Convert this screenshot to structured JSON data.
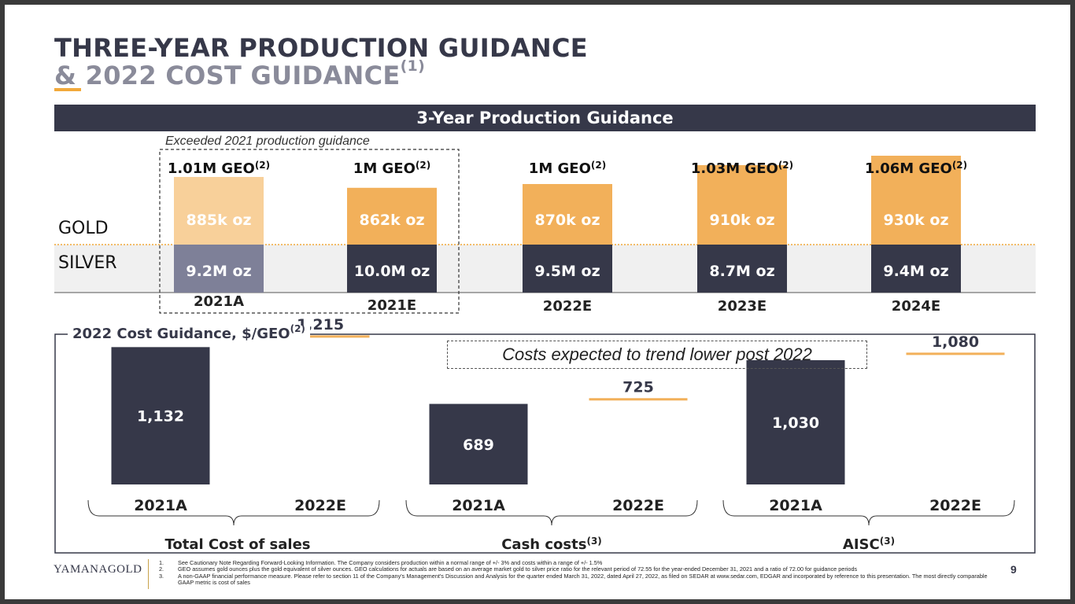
{
  "title": {
    "line1": "THREE-YEAR PRODUCTION GUIDANCE",
    "line2": "& 2022 COST GUIDANCE",
    "line2_sup": "(1)"
  },
  "banner": "3-Year Production Guidance",
  "exceeded_note": "Exceeded 2021 production guidance",
  "row_labels": {
    "gold": "GOLD",
    "silver": "SILVER"
  },
  "colors": {
    "navy": "#363849",
    "gold": "#f2b05a",
    "gold_light": "#f8d09a",
    "silver_light": "#7e8098",
    "silver_band": "#f0f0f0",
    "divider": "#f2a93b"
  },
  "chart_data": [
    {
      "type": "bar",
      "title": "3-Year Production Guidance",
      "categories": [
        "2021A",
        "2021E",
        "2022E",
        "2023E",
        "2024E"
      ],
      "totals": [
        "1.01M GEO",
        "1M GEO",
        "1M GEO",
        "1.03M GEO",
        "1.06M GEO"
      ],
      "total_sup": "(2)",
      "series": [
        {
          "name": "GOLD",
          "values": [
            885,
            862,
            870,
            910,
            930
          ],
          "labels": [
            "885k oz",
            "862k oz",
            "870k oz",
            "910k oz",
            "930k oz"
          ]
        },
        {
          "name": "SILVER",
          "values": [
            9.2,
            10.0,
            9.5,
            8.7,
            9.4
          ],
          "labels": [
            "9.2M oz",
            "10.0M oz",
            "9.5M oz",
            "8.7M oz",
            "9.4M oz"
          ]
        }
      ]
    },
    {
      "type": "bar",
      "title": "2022 Cost Guidance, $/GEO",
      "title_sup": "(2)",
      "annotation": "Costs expected to trend lower post 2022",
      "groups": [
        {
          "name": "Total Cost of sales",
          "sup": "",
          "categories": [
            "2021A",
            "2022E"
          ],
          "values": [
            1132,
            1215
          ],
          "labels": [
            "1,132",
            "1,215"
          ]
        },
        {
          "name": "Cash costs",
          "sup": "(3)",
          "categories": [
            "2021A",
            "2022E"
          ],
          "values": [
            689,
            725
          ],
          "labels": [
            "689",
            "725"
          ]
        },
        {
          "name": "AISC",
          "sup": "(3)",
          "categories": [
            "2021A",
            "2022E"
          ],
          "values": [
            1030,
            1080
          ],
          "labels": [
            "1,030",
            "1,080"
          ]
        }
      ]
    }
  ],
  "footer": {
    "logo": "YAMANAGOLD",
    "page": "9",
    "notes": [
      {
        "num": "1.",
        "text": "See Cautionary Note Regarding Forward-Looking Information. The Company considers production within a normal range of +/- 3% and costs within a range of +/- 1.5%"
      },
      {
        "num": "2.",
        "text": "GEO assumes gold ounces plus the gold equivalent of silver ounces. GEO calculations for actuals are based on an average market gold to silver price ratio for the relevant period of 72.55 for the year-ended December 31, 2021 and a ratio of 72.00 for guidance periods"
      },
      {
        "num": "3.",
        "text": "A non-GAAP financial performance measure. Please refer to section 11 of the Company's Management's Discussion and Analysis for the quarter ended March 31, 2022, dated April 27, 2022, as filed on SEDAR at www.sedar.com, EDGAR and incorporated by reference to this presentation. The most directly comparable GAAP metric is cost of sales"
      }
    ]
  }
}
